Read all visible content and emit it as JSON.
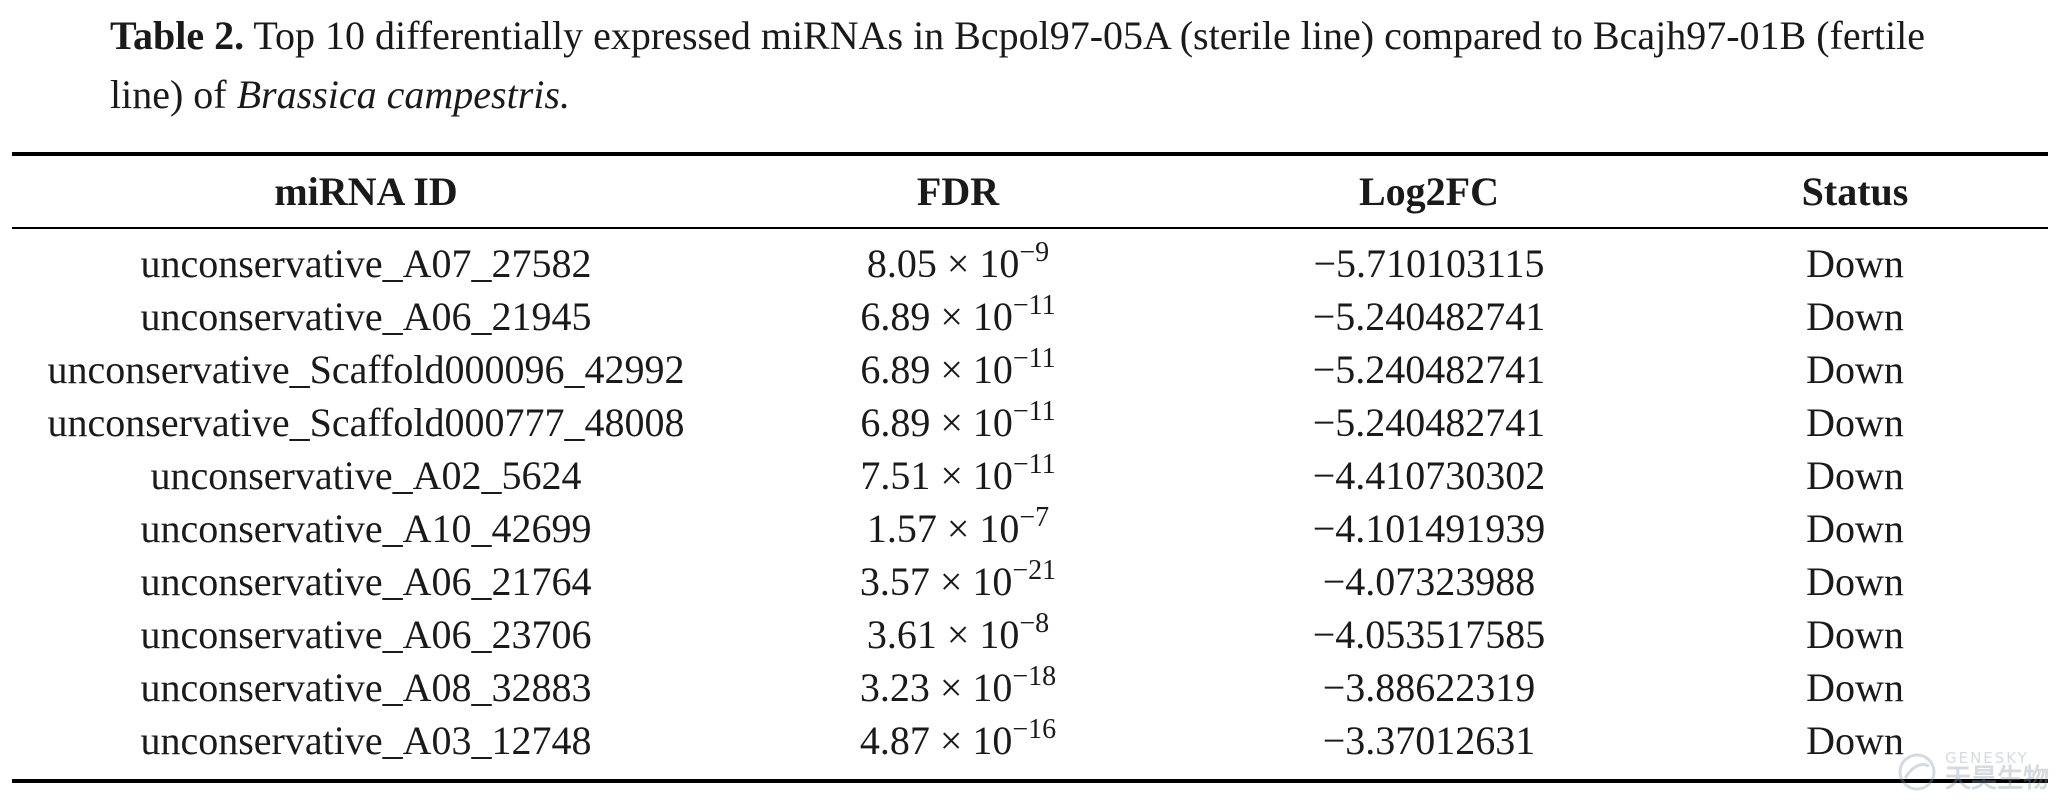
{
  "caption": {
    "label": "Table 2.",
    "text": " Top 10 differentially expressed miRNAs in Bcpol97-05A (sterile line) compared to Bcajh97-01B (fertile line) of ",
    "species": "Brassica campestris."
  },
  "table": {
    "headers": [
      "miRNA ID",
      "FDR",
      "Log2FC",
      "Status"
    ],
    "rows": [
      {
        "id": "unconservative_A07_27582",
        "fdr_mantissa": "8.05",
        "fdr_exponent": "−9",
        "log2fc": "−5.710103115",
        "status": "Down"
      },
      {
        "id": "unconservative_A06_21945",
        "fdr_mantissa": "6.89",
        "fdr_exponent": "−11",
        "log2fc": "−5.240482741",
        "status": "Down"
      },
      {
        "id": "unconservative_Scaffold000096_42992",
        "fdr_mantissa": "6.89",
        "fdr_exponent": "−11",
        "log2fc": "−5.240482741",
        "status": "Down"
      },
      {
        "id": "unconservative_Scaffold000777_48008",
        "fdr_mantissa": "6.89",
        "fdr_exponent": "−11",
        "log2fc": "−5.240482741",
        "status": "Down"
      },
      {
        "id": "unconservative_A02_5624",
        "fdr_mantissa": "7.51",
        "fdr_exponent": "−11",
        "log2fc": "−4.410730302",
        "status": "Down"
      },
      {
        "id": "unconservative_A10_42699",
        "fdr_mantissa": "1.57",
        "fdr_exponent": "−7",
        "log2fc": "−4.101491939",
        "status": "Down"
      },
      {
        "id": "unconservative_A06_21764",
        "fdr_mantissa": "3.57",
        "fdr_exponent": "−21",
        "log2fc": "−4.07323988",
        "status": "Down"
      },
      {
        "id": "unconservative_A06_23706",
        "fdr_mantissa": "3.61",
        "fdr_exponent": "−8",
        "log2fc": "−4.053517585",
        "status": "Down"
      },
      {
        "id": "unconservative_A08_32883",
        "fdr_mantissa": "3.23",
        "fdr_exponent": "−18",
        "log2fc": "−3.88622319",
        "status": "Down"
      },
      {
        "id": "unconservative_A03_12748",
        "fdr_mantissa": "4.87",
        "fdr_exponent": "−16",
        "log2fc": "−3.37012631",
        "status": "Down"
      }
    ],
    "fdr_base": " × 10"
  },
  "watermark": {
    "en": "GENESKY",
    "cn": "天昊生物"
  },
  "colors": {
    "text": "#1a1a1a",
    "rule": "#000000",
    "watermark": "#8a98a8"
  }
}
